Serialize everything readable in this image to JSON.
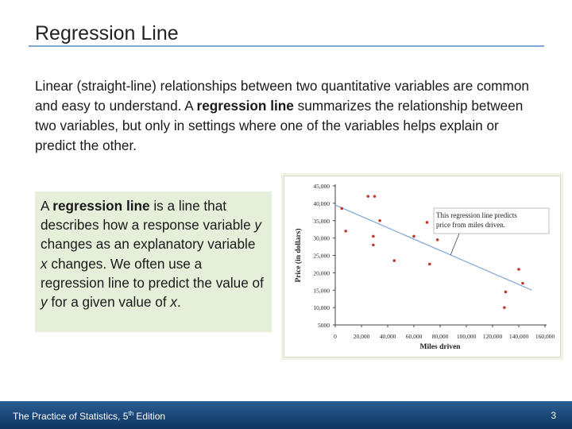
{
  "slide": {
    "title": "Regression Line",
    "intro": {
      "p1": "Linear (straight-line) relationships between two quantitative variables are common and easy to understand. A ",
      "bold": "regression line",
      "p2": " summarizes the relationship between two variables, but only in settings where one of the variables helps explain or predict the other."
    },
    "definition": {
      "t1": "A ",
      "bold": "regression line",
      "t2": " is a line that describes how a response variable ",
      "var_y": "y",
      "t3": " changes as an explanatory variable ",
      "var_x": "x",
      "t4": " changes. We often use a regression line to predict the value of ",
      "var_y2": "y",
      "t5": " for a given value of ",
      "var_x2": "x",
      "t6": "."
    }
  },
  "footer": {
    "book": "The Practice of Statistics, 5",
    "sup": "th",
    "edition": " Edition",
    "page": "3"
  },
  "colors": {
    "title_rule": "#7fa7cf",
    "definition_bg": "#e5efd9",
    "footer": "#1e4a7c",
    "point": "#c0392b",
    "line": "#7ca5d6"
  },
  "chart_data": {
    "type": "scatter",
    "xlabel": "Miles driven",
    "ylabel": "Price (in dollars)",
    "xlim": [
      0,
      160000
    ],
    "ylim": [
      5000,
      45000
    ],
    "x_ticks": [
      0,
      20000,
      40000,
      60000,
      80000,
      100000,
      120000,
      140000,
      160000
    ],
    "x_tick_labels": [
      "0",
      "20,000",
      "40,000",
      "60,000",
      "80,000",
      "100,000",
      "120,000",
      "140,000",
      "160,000"
    ],
    "y_ticks": [
      5000,
      10000,
      15000,
      20000,
      25000,
      30000,
      35000,
      40000,
      45000
    ],
    "y_tick_labels": [
      "5000",
      "10,000",
      "15,000",
      "20,000",
      "25,000",
      "30,000",
      "35,000",
      "40,000",
      "45,000"
    ],
    "points": [
      {
        "x": 5000,
        "y": 38500
      },
      {
        "x": 8000,
        "y": 32000
      },
      {
        "x": 25000,
        "y": 42000
      },
      {
        "x": 30000,
        "y": 42000
      },
      {
        "x": 29000,
        "y": 30500
      },
      {
        "x": 29000,
        "y": 28000
      },
      {
        "x": 34000,
        "y": 35000
      },
      {
        "x": 45000,
        "y": 23500
      },
      {
        "x": 60000,
        "y": 30500
      },
      {
        "x": 70000,
        "y": 34500
      },
      {
        "x": 72000,
        "y": 22500
      },
      {
        "x": 78000,
        "y": 29500
      },
      {
        "x": 130000,
        "y": 14500
      },
      {
        "x": 129000,
        "y": 10000
      },
      {
        "x": 140000,
        "y": 21000
      },
      {
        "x": 143000,
        "y": 17000
      }
    ],
    "regression_line": {
      "x": [
        0,
        150000
      ],
      "y": [
        39500,
        15000
      ]
    },
    "annotation": {
      "lines": [
        "This regression line predicts",
        "price from miles driven."
      ],
      "points_to_x": 88000
    }
  }
}
